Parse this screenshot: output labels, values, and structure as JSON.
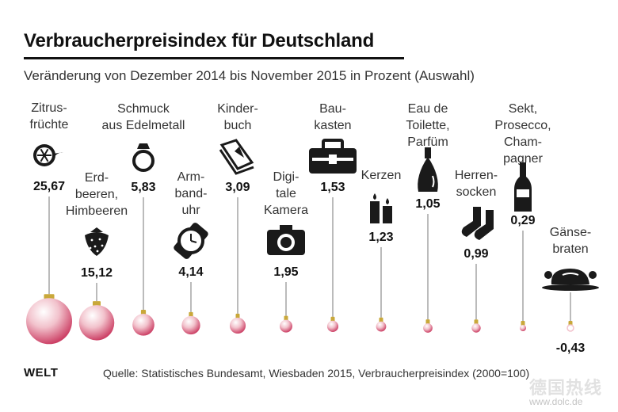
{
  "title": "Verbraucherpreisindex für Deutschland",
  "subtitle": "Veränderung von Dezember 2014 bis November 2015 in Prozent (Auswahl)",
  "footer": {
    "logo": "WELT",
    "source": "Quelle: Statistisches Bundesamt, Wiesbaden 2015, Verbraucherpreisindex (2000=100)",
    "watermark": "德国热线",
    "watermark_url": "www.dolc.de"
  },
  "colors": {
    "ornament_dark": "#c8325a",
    "ornament_light": "#f2c2cc",
    "cap": "#c9a83a",
    "text": "#111111"
  },
  "chart_data": {
    "type": "bubble",
    "title": "Verbraucherpreisindex für Deutschland",
    "subtitle": "Veränderung von Dezember 2014 bis November 2015 in Prozent (Auswahl)",
    "unit": "Prozent",
    "categories": [
      {
        "name": "Zitrus-früchte",
        "label_lines": [
          "Zitrus-",
          "früchte"
        ],
        "icon": "citrus-icon"
      },
      {
        "name": "Erdbeeren, Himbeeren",
        "label_lines": [
          "Erd-",
          "beeren,",
          "Himbeeren"
        ],
        "icon": "strawberry-icon"
      },
      {
        "name": "Schmuck aus Edelmetall",
        "label_lines": [
          "Schmuck",
          "aus Edelmetall"
        ],
        "icon": "ring-icon"
      },
      {
        "name": "Armbanduhr",
        "label_lines": [
          "Arm-",
          "band-",
          "uhr"
        ],
        "icon": "watch-icon"
      },
      {
        "name": "Kinderbuch",
        "label_lines": [
          "Kinder-",
          "buch"
        ],
        "icon": "book-icon"
      },
      {
        "name": "Digitale Kamera",
        "label_lines": [
          "Digi-",
          "tale",
          "Kamera"
        ],
        "icon": "camera-icon"
      },
      {
        "name": "Baukasten",
        "label_lines": [
          "Bau-",
          "kasten"
        ],
        "icon": "toolbox-icon"
      },
      {
        "name": "Kerzen",
        "label_lines": [
          "Kerzen"
        ],
        "icon": "candles-icon"
      },
      {
        "name": "Eau de Toilette, Parfüm",
        "label_lines": [
          "Eau de",
          "Toilette,",
          "Parfüm"
        ],
        "icon": "perfume-icon"
      },
      {
        "name": "Herrensocken",
        "label_lines": [
          "Herren-",
          "socken"
        ],
        "icon": "socks-icon"
      },
      {
        "name": "Sekt, Prosecco, Champagner",
        "label_lines": [
          "Sekt,",
          "Prosecco,",
          "Cham-",
          "pagner"
        ],
        "icon": "bottle-icon"
      },
      {
        "name": "Gänsebraten",
        "label_lines": [
          "Gänse-",
          "braten"
        ],
        "icon": "roast-goose-icon"
      }
    ],
    "values": [
      25.67,
      15.12,
      5.83,
      4.14,
      3.09,
      1.95,
      1.53,
      1.23,
      1.05,
      0.99,
      0.29,
      -0.43
    ],
    "value_labels": [
      "25,67",
      "15,12",
      "5,83",
      "4,14",
      "3,09",
      "1,95",
      "1,53",
      "1,23",
      "1,05",
      "0,99",
      "0,29",
      "-0,43"
    ],
    "encoding": "ornament area proportional to value; negative value shown as hollow ornament",
    "legend": "none",
    "grid": false
  }
}
